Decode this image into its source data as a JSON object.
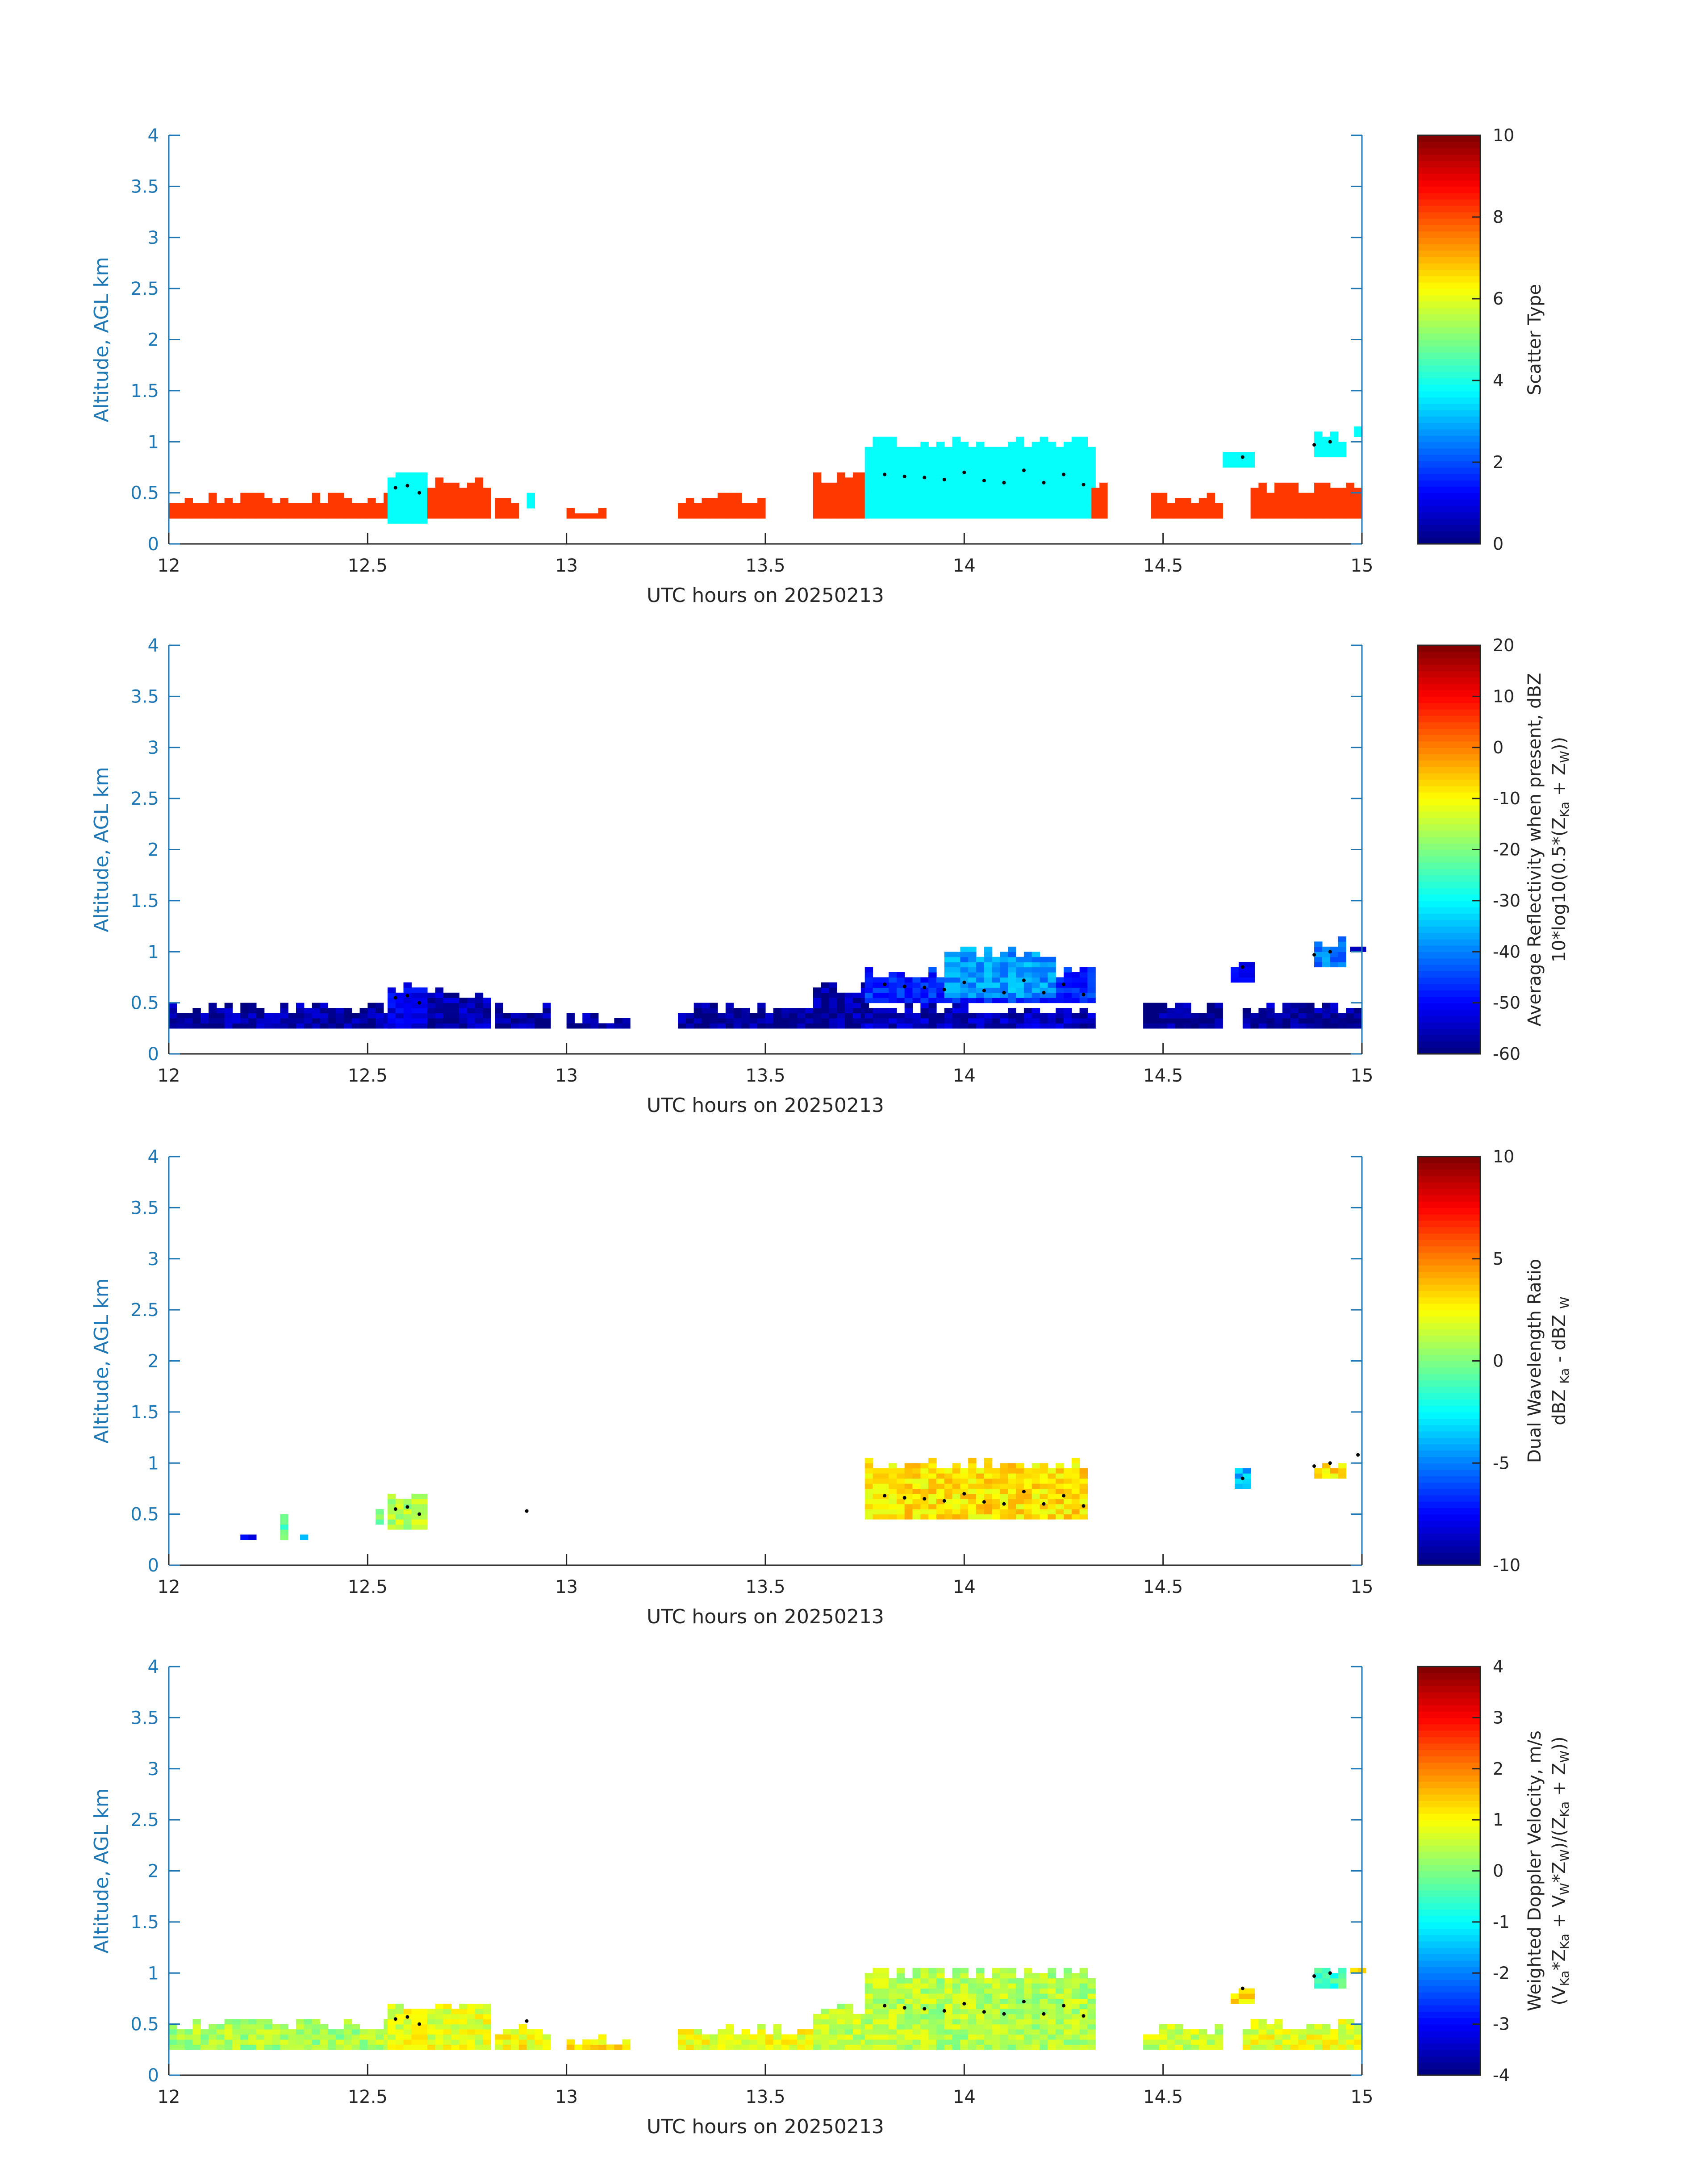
{
  "chart_data": [
    {
      "type": "heatmap",
      "panel": 1,
      "title": "",
      "xlabel": "UTC hours on 20250213",
      "ylabel": "Altitude, AGL km",
      "xlim": [
        12,
        15
      ],
      "ylim": [
        0,
        4
      ],
      "xticks": [
        "12",
        "12.5",
        "13",
        "13.5",
        "14",
        "14.5",
        "15"
      ],
      "yticks": [
        "0",
        "0.5",
        "1",
        "1.5",
        "2",
        "2.5",
        "3",
        "3.5",
        "4"
      ],
      "colorbar": {
        "label": "Scatter Type",
        "label2": "",
        "range": [
          0,
          10
        ],
        "ticks": [
          "0",
          "2",
          "4",
          "6",
          "8",
          "10"
        ]
      },
      "colormap": "jet",
      "value_field": "scatter type",
      "regions": [
        {
          "x": [
            12.0,
            12.55
          ],
          "y": [
            0.25,
            0.5
          ],
          "value": 8.2
        },
        {
          "x": [
            12.55,
            12.65
          ],
          "y": [
            0.2,
            0.7
          ],
          "value": 3.8
        },
        {
          "x": [
            12.65,
            12.8
          ],
          "y": [
            0.25,
            0.65
          ],
          "value": 8.2
        },
        {
          "x": [
            12.82,
            12.88
          ],
          "y": [
            0.25,
            0.45
          ],
          "value": 8.2
        },
        {
          "x": [
            12.9,
            12.92
          ],
          "y": [
            0.35,
            0.6
          ],
          "value": 3.8
        },
        {
          "x": [
            13.0,
            13.1
          ],
          "y": [
            0.25,
            0.35
          ],
          "value": 8.2
        },
        {
          "x": [
            13.28,
            13.5
          ],
          "y": [
            0.25,
            0.5
          ],
          "value": 8.2
        },
        {
          "x": [
            13.62,
            13.75
          ],
          "y": [
            0.25,
            0.7
          ],
          "value": 8.2
        },
        {
          "x": [
            13.75,
            14.32
          ],
          "y": [
            0.25,
            1.05
          ],
          "value": 3.8
        },
        {
          "x": [
            14.32,
            14.35
          ],
          "y": [
            0.25,
            0.6
          ],
          "value": 8.2
        },
        {
          "x": [
            14.47,
            14.65
          ],
          "y": [
            0.25,
            0.5
          ],
          "value": 8.2
        },
        {
          "x": [
            14.65,
            14.72
          ],
          "y": [
            0.75,
            0.95
          ],
          "value": 3.8
        },
        {
          "x": [
            14.72,
            15.0
          ],
          "y": [
            0.25,
            0.6
          ],
          "value": 8.2
        },
        {
          "x": [
            14.88,
            14.95
          ],
          "y": [
            0.85,
            1.1
          ],
          "value": 3.8
        },
        {
          "x": [
            14.98,
            15.0
          ],
          "y": [
            1.05,
            1.25
          ],
          "value": 3.8
        }
      ],
      "cloud_base_points": {
        "x": [
          12.57,
          12.6,
          12.63,
          13.8,
          13.85,
          13.9,
          13.95,
          14.0,
          14.05,
          14.1,
          14.15,
          14.2,
          14.25,
          14.3,
          14.7,
          14.88,
          14.92
        ],
        "y": [
          0.55,
          0.57,
          0.5,
          0.68,
          0.66,
          0.65,
          0.63,
          0.7,
          0.62,
          0.6,
          0.72,
          0.6,
          0.68,
          0.58,
          0.85,
          0.97,
          1.0
        ]
      }
    },
    {
      "type": "heatmap",
      "panel": 2,
      "title": "",
      "xlabel": "UTC hours on 20250213",
      "ylabel": "Altitude, AGL km",
      "xlim": [
        12,
        15
      ],
      "ylim": [
        0,
        4
      ],
      "xticks": [
        "12",
        "12.5",
        "13",
        "13.5",
        "14",
        "14.5",
        "15"
      ],
      "yticks": [
        "0",
        "0.5",
        "1",
        "1.5",
        "2",
        "2.5",
        "3",
        "3.5",
        "4"
      ],
      "colorbar": {
        "label": "Average Reflectivity when present, dBZ",
        "label2": "10*log10(0.5*(Z",
        "label2_parts": [
          "10*log10(0.5*(Z",
          "Ka",
          " + Z",
          "W",
          "))"
        ],
        "range": [
          -60,
          20
        ],
        "ticks": [
          "-60",
          "-50",
          "-40",
          "-30",
          "-20",
          "-10",
          "0",
          "10",
          "20"
        ]
      },
      "colormap": "jet",
      "value_field": "reflectivity dBZ",
      "regions": [
        {
          "x": [
            12.0,
            12.55
          ],
          "y": [
            0.25,
            0.5
          ],
          "value": -57
        },
        {
          "x": [
            12.55,
            12.65
          ],
          "y": [
            0.25,
            0.7
          ],
          "value": -52
        },
        {
          "x": [
            12.65,
            12.8
          ],
          "y": [
            0.25,
            0.65
          ],
          "value": -56
        },
        {
          "x": [
            12.82,
            12.95
          ],
          "y": [
            0.25,
            0.5
          ],
          "value": -57
        },
        {
          "x": [
            13.0,
            13.15
          ],
          "y": [
            0.25,
            0.4
          ],
          "value": -58
        },
        {
          "x": [
            13.28,
            13.62
          ],
          "y": [
            0.25,
            0.5
          ],
          "value": -58
        },
        {
          "x": [
            13.62,
            13.75
          ],
          "y": [
            0.25,
            0.7
          ],
          "value": -57
        },
        {
          "x": [
            13.75,
            14.32
          ],
          "y": [
            0.25,
            0.5
          ],
          "value": -55
        },
        {
          "x": [
            13.75,
            14.32
          ],
          "y": [
            0.5,
            0.85
          ],
          "value": -47
        },
        {
          "x": [
            13.95,
            14.22
          ],
          "y": [
            0.55,
            1.05
          ],
          "value": -38
        },
        {
          "x": [
            14.45,
            14.65
          ],
          "y": [
            0.25,
            0.5
          ],
          "value": -58
        },
        {
          "x": [
            14.67,
            14.72
          ],
          "y": [
            0.7,
            0.9
          ],
          "value": -50
        },
        {
          "x": [
            14.7,
            15.0
          ],
          "y": [
            0.25,
            0.5
          ],
          "value": -57
        },
        {
          "x": [
            14.88,
            14.95
          ],
          "y": [
            0.85,
            1.15
          ],
          "value": -40
        },
        {
          "x": [
            14.97,
            15.0
          ],
          "y": [
            1.0,
            1.1
          ],
          "value": -56
        }
      ],
      "cloud_base_points": {
        "x": [
          12.57,
          12.6,
          12.63,
          13.8,
          13.85,
          13.9,
          13.95,
          14.0,
          14.05,
          14.1,
          14.15,
          14.2,
          14.25,
          14.3,
          14.7,
          14.88,
          14.92
        ],
        "y": [
          0.55,
          0.57,
          0.5,
          0.68,
          0.66,
          0.65,
          0.63,
          0.7,
          0.62,
          0.6,
          0.72,
          0.6,
          0.68,
          0.58,
          0.85,
          0.97,
          1.0
        ]
      }
    },
    {
      "type": "heatmap",
      "panel": 3,
      "title": "",
      "xlabel": "UTC hours on 20250213",
      "ylabel": "Altitude, AGL km",
      "xlim": [
        12,
        15
      ],
      "ylim": [
        0,
        4
      ],
      "xticks": [
        "12",
        "12.5",
        "13",
        "13.5",
        "14",
        "14.5",
        "15"
      ],
      "yticks": [
        "0",
        "0.5",
        "1",
        "1.5",
        "2",
        "2.5",
        "3",
        "3.5",
        "4"
      ],
      "colorbar": {
        "label": "Dual Wavelength Ratio",
        "label2": "dBZ",
        "label2_parts": [
          "dBZ ",
          "Ka",
          " - dBZ ",
          "W",
          ""
        ],
        "range": [
          -10,
          10
        ],
        "ticks": [
          "-10",
          "-5",
          "0",
          "5",
          "10"
        ]
      },
      "colormap": "jet",
      "value_field": "DWR dB",
      "regions": [
        {
          "x": [
            12.18,
            12.21
          ],
          "y": [
            0.25,
            0.3
          ],
          "value": -8
        },
        {
          "x": [
            12.28,
            12.3
          ],
          "y": [
            0.25,
            0.55
          ],
          "value": -1
        },
        {
          "x": [
            12.33,
            12.35
          ],
          "y": [
            0.25,
            0.3
          ],
          "value": -3
        },
        {
          "x": [
            12.52,
            12.54
          ],
          "y": [
            0.4,
            0.6
          ],
          "value": 0
        },
        {
          "x": [
            12.55,
            12.65
          ],
          "y": [
            0.35,
            0.7
          ],
          "value": 1
        },
        {
          "x": [
            13.75,
            14.3
          ],
          "y": [
            0.45,
            1.05
          ],
          "value": 3
        },
        {
          "x": [
            14.68,
            14.72
          ],
          "y": [
            0.75,
            0.95
          ],
          "value": -4
        },
        {
          "x": [
            14.88,
            14.95
          ],
          "y": [
            0.85,
            1.05
          ],
          "value": 3
        }
      ],
      "cloud_base_points": {
        "x": [
          12.57,
          12.6,
          12.63,
          12.9,
          13.8,
          13.85,
          13.9,
          13.95,
          14.0,
          14.05,
          14.1,
          14.15,
          14.2,
          14.25,
          14.3,
          14.7,
          14.88,
          14.92,
          14.99
        ],
        "y": [
          0.55,
          0.57,
          0.5,
          0.53,
          0.68,
          0.66,
          0.65,
          0.63,
          0.7,
          0.62,
          0.6,
          0.72,
          0.6,
          0.68,
          0.58,
          0.85,
          0.97,
          1.0,
          1.08
        ]
      }
    },
    {
      "type": "heatmap",
      "panel": 4,
      "title": "",
      "xlabel": "UTC hours on 20250213",
      "ylabel": "Altitude, AGL km",
      "xlim": [
        12,
        15
      ],
      "ylim": [
        0,
        4
      ],
      "xticks": [
        "12",
        "12.5",
        "13",
        "13.5",
        "14",
        "14.5",
        "15"
      ],
      "yticks": [
        "0",
        "0.5",
        "1",
        "1.5",
        "2",
        "2.5",
        "3",
        "3.5",
        "4"
      ],
      "colorbar": {
        "label": "Weighted Doppler Velocity, m/s",
        "label2": "(V",
        "label2_parts": [
          "(V",
          "Ka",
          "*Z",
          "Ka",
          " + V",
          "W",
          "*Z",
          "W",
          ")/(Z",
          "Ka",
          " + Z",
          "W",
          "))"
        ],
        "range": [
          -4,
          4
        ],
        "ticks": [
          "-4",
          "-3",
          "-2",
          "-1",
          "0",
          "1",
          "2",
          "3",
          "4"
        ]
      },
      "colormap": "jet",
      "value_field": "velocity m/s",
      "regions": [
        {
          "x": [
            12.0,
            12.55
          ],
          "y": [
            0.25,
            0.55
          ],
          "value": 0.3
        },
        {
          "x": [
            12.55,
            12.8
          ],
          "y": [
            0.25,
            0.7
          ],
          "value": 0.8
        },
        {
          "x": [
            12.82,
            12.95
          ],
          "y": [
            0.25,
            0.5
          ],
          "value": 1.0
        },
        {
          "x": [
            13.0,
            13.15
          ],
          "y": [
            0.25,
            0.4
          ],
          "value": 1.2
        },
        {
          "x": [
            13.28,
            13.62
          ],
          "y": [
            0.25,
            0.5
          ],
          "value": 0.9
        },
        {
          "x": [
            13.62,
            13.75
          ],
          "y": [
            0.25,
            0.7
          ],
          "value": 0.5
        },
        {
          "x": [
            13.75,
            14.32
          ],
          "y": [
            0.25,
            1.05
          ],
          "value": 0.4
        },
        {
          "x": [
            14.45,
            14.65
          ],
          "y": [
            0.25,
            0.5
          ],
          "value": 0.6
        },
        {
          "x": [
            14.67,
            14.72
          ],
          "y": [
            0.7,
            0.9
          ],
          "value": 1.2
        },
        {
          "x": [
            14.7,
            15.0
          ],
          "y": [
            0.25,
            0.55
          ],
          "value": 0.8
        },
        {
          "x": [
            14.88,
            14.95
          ],
          "y": [
            0.85,
            1.1
          ],
          "value": -0.5
        },
        {
          "x": [
            14.97,
            15.0
          ],
          "y": [
            1.0,
            1.1
          ],
          "value": 1.5
        }
      ],
      "cloud_base_points": {
        "x": [
          12.57,
          12.6,
          12.63,
          12.9,
          13.8,
          13.85,
          13.9,
          13.95,
          14.0,
          14.05,
          14.1,
          14.15,
          14.2,
          14.25,
          14.3,
          14.7,
          14.88,
          14.92
        ],
        "y": [
          0.55,
          0.57,
          0.5,
          0.53,
          0.68,
          0.66,
          0.65,
          0.63,
          0.7,
          0.62,
          0.6,
          0.72,
          0.6,
          0.68,
          0.58,
          0.85,
          0.97,
          1.0
        ]
      }
    }
  ]
}
